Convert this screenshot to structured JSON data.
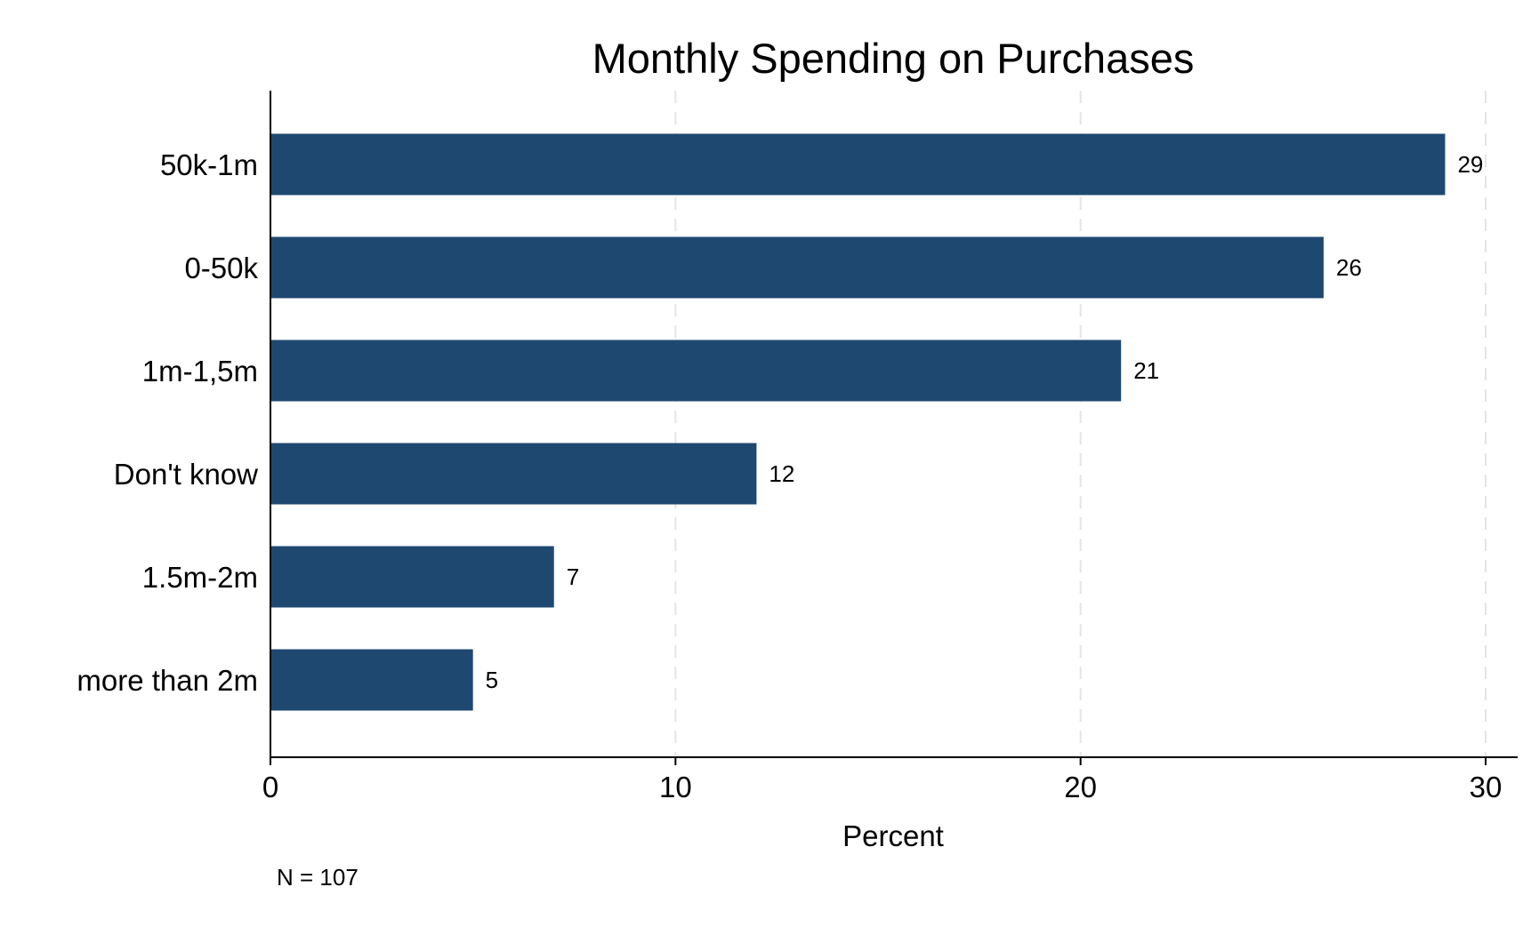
{
  "chart_data": {
    "type": "bar",
    "orientation": "horizontal",
    "title": "Monthly Spending on Purchases",
    "xlabel": "Percent",
    "ylabel": "",
    "categories": [
      "50k-1m",
      "0-50k",
      "1m-1,5m",
      "Don't know",
      "1.5m-2m",
      "more than 2m"
    ],
    "values": [
      29,
      26,
      21,
      12,
      7,
      5
    ],
    "value_labels": [
      "29",
      "26",
      "21",
      "12",
      "7",
      "5"
    ],
    "xlim": [
      0,
      30
    ],
    "xticks": [
      0,
      10,
      20,
      30
    ],
    "xtick_labels": [
      "0",
      "10",
      "20",
      "30"
    ],
    "grid": "vertical dashed",
    "legend": "none",
    "note": "N = 107",
    "bar_color": "#1e4870",
    "grid_color": "#e4e4e4"
  }
}
